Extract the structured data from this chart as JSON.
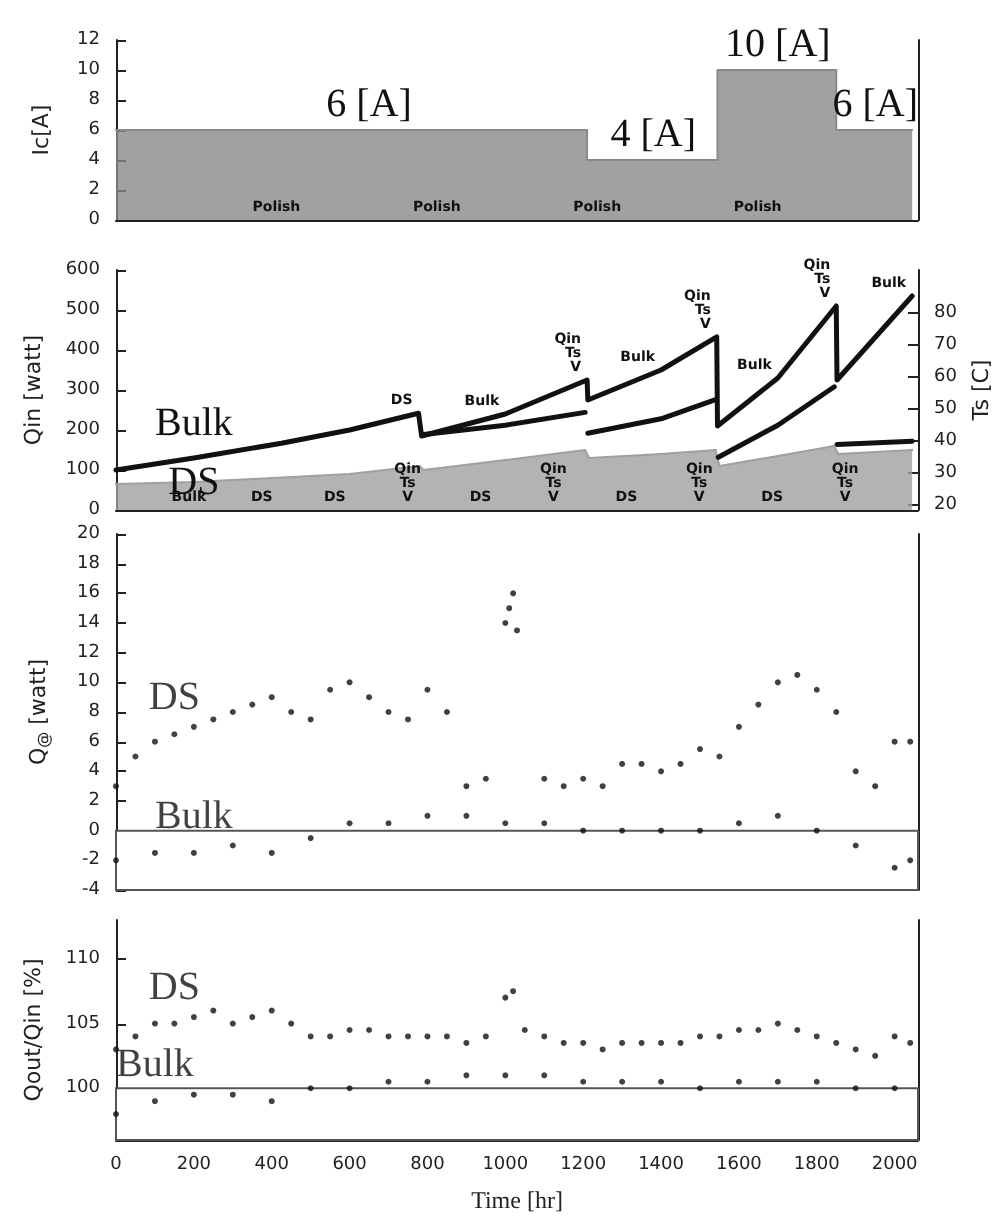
{
  "chart_data": [
    {
      "type": "area",
      "ylabel": "Ic[A]",
      "xlim": [
        0,
        2060
      ],
      "ylim": [
        0,
        12
      ],
      "yticks": [
        0,
        2,
        4,
        6,
        8,
        10,
        12
      ],
      "tick_labels": "y",
      "grid": false,
      "legend": false,
      "marker": "none",
      "x": [
        0,
        1210,
        1210,
        1545,
        1545,
        1850,
        1850,
        2045
      ],
      "values": [
        6,
        6,
        4,
        4,
        10,
        10,
        6,
        6
      ],
      "color": "#8a8a8a",
      "annotations": [
        {
          "text": "6 [A]",
          "x": 650,
          "y": 6
        },
        {
          "text": "4 [A]",
          "x": 1380,
          "y": 4
        },
        {
          "text": "10 [A]",
          "x": 1700,
          "y": 10
        },
        {
          "text": "6 [A]",
          "x": 1950,
          "y": 6
        },
        "Polish",
        "Polish",
        "Polish",
        "Polish"
      ]
    },
    {
      "type": "line",
      "ylabel": "Qin [watt]",
      "y2label": "Ts [C]",
      "xlim": [
        0,
        2060
      ],
      "ylim": [
        0,
        600
      ],
      "yticks": [
        0,
        100,
        200,
        300,
        400,
        500,
        600
      ],
      "y2lim": [
        18.5,
        93.5
      ],
      "y2ticks": [
        20,
        30,
        40,
        50,
        60,
        70,
        80
      ],
      "tick_labels": "y",
      "grid": false,
      "legend": false,
      "marker": "none",
      "line_style": "solid",
      "series": [
        {
          "name": "Bulk",
          "color": "#111111",
          "x": [
            0,
            200,
            425,
            600,
            777,
            785,
            1000,
            1210,
            1212,
            1400,
            1543,
            1545,
            1700,
            1850,
            1852,
            2045
          ],
          "values": [
            100,
            130,
            167,
            200,
            242,
            185,
            240,
            325,
            275,
            350,
            433,
            210,
            330,
            510,
            325,
            535
          ]
        },
        {
          "name": "DS",
          "type": "area",
          "color": "#a0a0a0",
          "x": [
            0,
            200,
            400,
            600,
            780,
            790,
            1000,
            1205,
            1215,
            1400,
            1540,
            1550,
            1700,
            1845,
            1855,
            2045
          ],
          "values": [
            65,
            70,
            80,
            90,
            110,
            100,
            125,
            150,
            130,
            140,
            150,
            110,
            135,
            160,
            140,
            150
          ]
        },
        {
          "axis": "y2",
          "color": "#111111",
          "x": [
            785,
            1000,
            1205,
            1208,
            1212,
            1400,
            1540,
            1543,
            1547,
            1700,
            1845,
            1848,
            1852,
            2045
          ],
          "values": [
            42,
            45,
            49,
            null,
            42.5,
            47,
            53,
            null,
            35,
            45,
            57,
            null,
            39,
            40
          ]
        }
      ],
      "annotations": [
        {
          "text": "DS",
          "x": 777,
          "y": 242
        },
        {
          "text": "Bulk",
          "x": 1000,
          "y": 240
        },
        {
          "text": "Qin\nTs\nV",
          "x": 1210,
          "y": 325
        },
        {
          "text": "Bulk",
          "x": 1400,
          "y": 350
        },
        {
          "text": "Qin\nTs\nV",
          "x": 1543,
          "y": 433
        },
        {
          "text": "Bulk",
          "x": 1700,
          "y": 330
        },
        {
          "text": "Qin\nTs\nV",
          "x": 1850,
          "y": 510
        },
        {
          "text": "Bulk",
          "x": 2045,
          "y": 535
        },
        "Bulk",
        "DS",
        "DS",
        "Qin\nTs\nV",
        "DS",
        "Qin\nTs\nV",
        "DS",
        "Qin\nTs\nV",
        "DS",
        "Qin\nTs\nV"
      ]
    },
    {
      "type": "scatter",
      "ylabel": "Q$_{@}$ [watt]",
      "xlim": [
        0,
        2060
      ],
      "ylim": [
        -4,
        20
      ],
      "yticks": [
        -4,
        -2,
        0,
        2,
        4,
        6,
        8,
        10,
        12,
        14,
        16,
        18,
        20
      ],
      "tick_labels": "y",
      "grid": false,
      "legend": false,
      "marker": "circle",
      "bands": [
        {
          "axis": "y",
          "from": -4,
          "to": 0,
          "color": "#555555"
        }
      ],
      "series": [
        {
          "name": "DS",
          "color": "#111111",
          "x": [
            0,
            50,
            100,
            150,
            200,
            250,
            300,
            350,
            400,
            450,
            500,
            550,
            600,
            650,
            700,
            750,
            800,
            850,
            900,
            950,
            1000,
            1010,
            1020,
            1030,
            1100,
            1150,
            1200,
            1250,
            1300,
            1350,
            1400,
            1450,
            1500,
            1550,
            1600,
            1650,
            1700,
            1750,
            1800,
            1850,
            1900,
            1950,
            2000,
            2040
          ],
          "values": [
            3,
            5,
            6,
            6.5,
            7,
            7.5,
            8,
            8.5,
            9,
            8,
            7.5,
            9.5,
            10,
            9,
            8,
            7.5,
            9.5,
            8,
            3,
            3.5,
            14,
            15,
            16,
            13.5,
            3.5,
            3,
            3.5,
            3,
            4.5,
            4.5,
            4,
            4.5,
            5.5,
            5,
            7,
            8.5,
            10,
            10.5,
            9.5,
            8,
            4,
            3,
            6,
            6
          ]
        },
        {
          "name": "Bulk",
          "color": "#111111",
          "x": [
            0,
            100,
            200,
            300,
            400,
            500,
            600,
            700,
            800,
            900,
            1000,
            1100,
            1200,
            1300,
            1400,
            1500,
            1600,
            1700,
            1800,
            1900,
            2000,
            2040
          ],
          "values": [
            -2,
            -1.5,
            -1.5,
            -1,
            -1.5,
            -0.5,
            0.5,
            0.5,
            1,
            1,
            0.5,
            0.5,
            0,
            0,
            0,
            0,
            0.5,
            1,
            0,
            -1,
            -2.5,
            -2
          ]
        }
      ]
    },
    {
      "type": "scatter",
      "ylabel": "Qout/Qin [%]",
      "xlabel": "Time [hr]",
      "xlim": [
        0,
        2060
      ],
      "ylim": [
        96,
        113
      ],
      "yticks": [
        100,
        105,
        110
      ],
      "xticks": [
        0,
        200,
        400,
        600,
        800,
        1000,
        1200,
        1400,
        1600,
        1800,
        2000
      ],
      "grid": false,
      "legend": false,
      "marker": "circle",
      "bands": [
        {
          "axis": "y",
          "from": 96,
          "to": 100,
          "color": "#555555"
        }
      ],
      "series": [
        {
          "name": "DS",
          "color": "#111111",
          "x": [
            0,
            50,
            100,
            150,
            200,
            250,
            300,
            350,
            400,
            450,
            500,
            550,
            600,
            650,
            700,
            750,
            800,
            850,
            900,
            950,
            1000,
            1020,
            1050,
            1100,
            1150,
            1200,
            1250,
            1300,
            1350,
            1400,
            1450,
            1500,
            1550,
            1600,
            1650,
            1700,
            1750,
            1800,
            1850,
            1900,
            1950,
            2000,
            2040
          ],
          "values": [
            103,
            104,
            105,
            105,
            105.5,
            106,
            105,
            105.5,
            106,
            105,
            104,
            104,
            104.5,
            104.5,
            104,
            104,
            104,
            104,
            103.5,
            104,
            107,
            107.5,
            104.5,
            104,
            103.5,
            103.5,
            103,
            103.5,
            103.5,
            103.5,
            103.5,
            104,
            104,
            104.5,
            104.5,
            105,
            104.5,
            104,
            103.5,
            103,
            102.5,
            104,
            103.5
          ]
        },
        {
          "name": "Bulk",
          "color": "#111111",
          "x": [
            0,
            100,
            200,
            300,
            400,
            500,
            600,
            700,
            800,
            900,
            1000,
            1100,
            1200,
            1300,
            1400,
            1500,
            1600,
            1700,
            1800,
            1900,
            2000
          ],
          "values": [
            98,
            99,
            99.5,
            99.5,
            99,
            100,
            100,
            100.5,
            100.5,
            101,
            101,
            101,
            100.5,
            100.5,
            100.5,
            100,
            100.5,
            100.5,
            100.5,
            100,
            100
          ]
        }
      ]
    }
  ]
}
